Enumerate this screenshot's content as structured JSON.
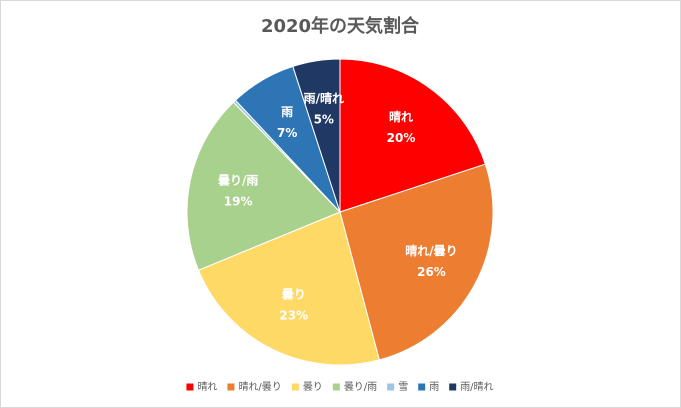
{
  "chart_data": {
    "type": "pie",
    "title": "2020年の天気割合",
    "categories": [
      "晴れ",
      "晴れ/曇り",
      "曇り",
      "曇り/雨",
      "雪",
      "雨",
      "雨/晴れ"
    ],
    "values": [
      20,
      26,
      23,
      19,
      0.3,
      7,
      5
    ],
    "value_labels": [
      "20%",
      "26%",
      "23%",
      "19%",
      null,
      "7%",
      "5%"
    ],
    "colors": [
      "#ff0000",
      "#ed7d31",
      "#ffd966",
      "#a9d18e",
      "#9dc3e6",
      "#2e75b6",
      "#1f3864"
    ],
    "legend": "bottom"
  }
}
